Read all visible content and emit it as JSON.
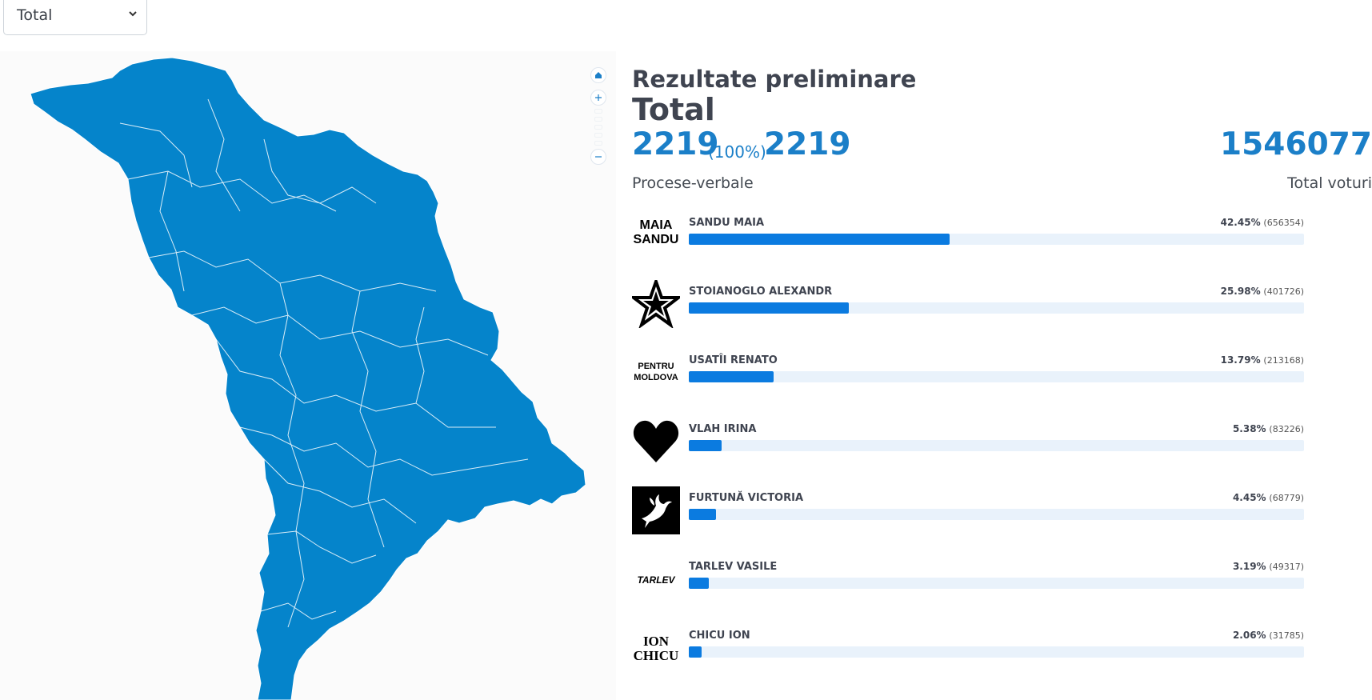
{
  "selector": {
    "value": "Total",
    "icon": "chevron-down-icon"
  },
  "map": {
    "fill_color": "#0584cb",
    "border_color": "#ffffff",
    "controls": [
      "home-icon",
      "zoom-in-icon",
      "zoom-out-icon"
    ]
  },
  "results": {
    "title": "Rezultate preliminare",
    "subtitle": "Total",
    "protocols_counted": "2219",
    "protocols_percent": "(100%)",
    "protocols_total": "2219",
    "protocols_label": "Procese-verbale",
    "total_votes": "1546077",
    "total_votes_label": "Total voturi",
    "accent_color": "#1b7fc8",
    "bar_color": "#0b7be0",
    "track_color": "#e9f2fb"
  },
  "candidates": [
    {
      "name": "SANDU MAIA",
      "percent": "42.45%",
      "votes": "(656354)",
      "share": 42.45,
      "logo": "text-logo",
      "logo_text": [
        "MAIA",
        "SANDU"
      ]
    },
    {
      "name": "STOIANOGLO ALEXANDR",
      "percent": "25.98%",
      "votes": "(401726)",
      "share": 25.98,
      "logo": "star-icon"
    },
    {
      "name": "USATÎI RENATO",
      "percent": "13.79%",
      "votes": "(213168)",
      "share": 13.79,
      "logo": "text-logo",
      "logo_text": [
        "PENTRU",
        "MOLDOVA"
      ]
    },
    {
      "name": "VLAH IRINA",
      "percent": "5.38%",
      "votes": "(83226)",
      "share": 5.38,
      "logo": "heart-icon"
    },
    {
      "name": "FURTUNĂ VICTORIA",
      "percent": "4.45%",
      "votes": "(68779)",
      "share": 4.45,
      "logo": "dove-icon"
    },
    {
      "name": "TARLEV VASILE",
      "percent": "3.19%",
      "votes": "(49317)",
      "share": 3.19,
      "logo": "text-logo",
      "logo_text": [
        "TARLEV"
      ]
    },
    {
      "name": "CHICU ION",
      "percent": "2.06%",
      "votes": "(31785)",
      "share": 2.06,
      "logo": "text-logo",
      "logo_text": [
        "ION",
        "CHICU"
      ]
    }
  ]
}
